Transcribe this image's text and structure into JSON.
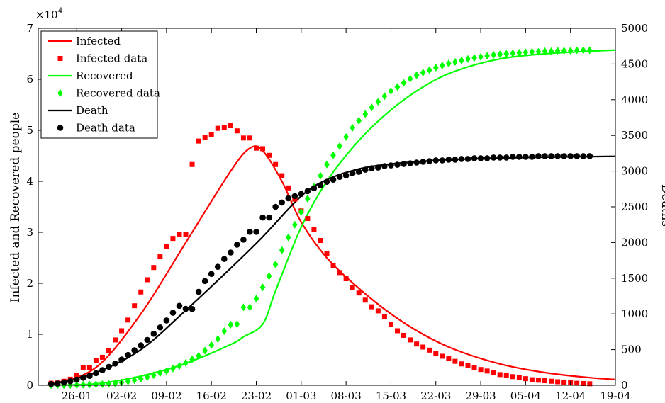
{
  "chart_data": {
    "type": "line",
    "title": "",
    "xlabel": "",
    "ylabel_left": "Infected and Recovered people",
    "ylabel_right": "Deaths",
    "left_multiplier_label": "×10",
    "left_multiplier_exponent": "4",
    "left_axis": {
      "range": [
        0,
        70000
      ],
      "ticks": [
        0,
        10000,
        20000,
        30000,
        40000,
        50000,
        60000,
        70000
      ],
      "tick_labels": [
        "0",
        "1",
        "2",
        "3",
        "4",
        "5",
        "6",
        "7"
      ]
    },
    "right_axis": {
      "range": [
        0,
        5000
      ],
      "ticks": [
        0,
        500,
        1000,
        1500,
        2000,
        2500,
        3000,
        3500,
        4000,
        4500,
        5000
      ],
      "tick_labels": [
        "0",
        "500",
        "1000",
        "1500",
        "2000",
        "2500",
        "3000",
        "3500",
        "4000",
        "4500",
        "5000"
      ]
    },
    "x_axis": {
      "type": "date",
      "range": [
        "2020-01-20",
        "2020-04-19"
      ],
      "ticks": [
        "2020-01-26",
        "2020-02-02",
        "2020-02-09",
        "2020-02-16",
        "2020-02-23",
        "2020-03-01",
        "2020-03-08",
        "2020-03-15",
        "2020-03-22",
        "2020-03-29",
        "2020-04-05",
        "2020-04-12",
        "2020-04-19"
      ],
      "tick_labels": [
        "26-01",
        "02-02",
        "09-02",
        "16-02",
        "23-02",
        "01-03",
        "08-03",
        "15-03",
        "22-03",
        "29-03",
        "05-04",
        "12-04",
        "19-04"
      ]
    },
    "grid": false,
    "legend": {
      "placement": "top-left",
      "entries": [
        "Infected",
        "Infected data",
        "Recovered",
        "Recovered data",
        "Death",
        "Death data"
      ]
    },
    "colors": {
      "infected": "#ff0000",
      "recovered": "#00ff00",
      "death": "#000000"
    },
    "series": [
      {
        "name": "Infected",
        "kind": "line",
        "axis": "left",
        "color": "#ff0000",
        "x": [
          "2020-01-22",
          "2020-01-29",
          "2020-02-05",
          "2020-02-12",
          "2020-02-19",
          "2020-02-22",
          "2020-02-24",
          "2020-02-27",
          "2020-03-01",
          "2020-03-05",
          "2020-03-10",
          "2020-03-15",
          "2020-03-20",
          "2020-03-25",
          "2020-04-01",
          "2020-04-08",
          "2020-04-15",
          "2020-04-22"
        ],
        "y": [
          200,
          3500,
          14000,
          28000,
          42000,
          46500,
          46000,
          40000,
          32000,
          25000,
          19000,
          14000,
          10000,
          7000,
          4200,
          2500,
          1500,
          900
        ]
      },
      {
        "name": "Infected data",
        "kind": "scatter",
        "axis": "left",
        "color": "#ff0000",
        "marker": "square",
        "x": [
          "2020-01-22",
          "2020-01-23",
          "2020-01-24",
          "2020-01-25",
          "2020-01-26",
          "2020-01-27",
          "2020-01-28",
          "2020-01-29",
          "2020-01-30",
          "2020-01-31",
          "2020-02-01",
          "2020-02-02",
          "2020-02-03",
          "2020-02-04",
          "2020-02-05",
          "2020-02-06",
          "2020-02-07",
          "2020-02-08",
          "2020-02-09",
          "2020-02-10",
          "2020-02-11",
          "2020-02-12",
          "2020-02-13",
          "2020-02-14",
          "2020-02-15",
          "2020-02-16",
          "2020-02-17",
          "2020-02-18",
          "2020-02-19",
          "2020-02-20",
          "2020-02-21",
          "2020-02-22",
          "2020-02-23",
          "2020-02-24",
          "2020-02-25",
          "2020-02-26",
          "2020-02-27",
          "2020-02-28",
          "2020-02-29",
          "2020-03-01",
          "2020-03-02",
          "2020-03-03",
          "2020-03-04",
          "2020-03-05",
          "2020-03-06",
          "2020-03-07",
          "2020-03-08",
          "2020-03-09",
          "2020-03-10",
          "2020-03-11",
          "2020-03-12",
          "2020-03-13",
          "2020-03-14",
          "2020-03-15",
          "2020-03-16",
          "2020-03-17",
          "2020-03-18",
          "2020-03-19",
          "2020-03-20",
          "2020-03-21",
          "2020-03-22",
          "2020-03-23",
          "2020-03-24",
          "2020-03-25",
          "2020-03-26",
          "2020-03-27",
          "2020-03-28",
          "2020-03-29",
          "2020-03-30",
          "2020-03-31",
          "2020-04-01",
          "2020-04-02",
          "2020-04-03",
          "2020-04-04",
          "2020-04-05",
          "2020-04-06",
          "2020-04-07",
          "2020-04-08",
          "2020-04-09",
          "2020-04-10",
          "2020-04-11",
          "2020-04-12",
          "2020-04-13",
          "2020-04-14",
          "2020-04-15"
        ],
        "y": [
          400,
          450,
          800,
          1200,
          2000,
          3500,
          3500,
          4800,
          5500,
          6800,
          8900,
          10700,
          12800,
          15600,
          18300,
          20700,
          23100,
          25200,
          27200,
          28800,
          29600,
          29600,
          43300,
          47900,
          48600,
          49100,
          50400,
          50600,
          50900,
          49900,
          48500,
          48500,
          46500,
          46400,
          45100,
          43300,
          41100,
          38700,
          36500,
          34200,
          32700,
          30500,
          28400,
          25900,
          23400,
          22100,
          20900,
          19200,
          18100,
          16700,
          15400,
          14600,
          13400,
          12000,
          10700,
          9800,
          8900,
          8100,
          7500,
          6900,
          6300,
          5700,
          5200,
          4700,
          4200,
          3900,
          3500,
          3100,
          2800,
          2500,
          2100,
          1900,
          1700,
          1500,
          1300,
          1100,
          1000,
          900,
          800,
          700,
          600,
          500,
          400,
          350,
          300
        ]
      },
      {
        "name": "Recovered",
        "kind": "line",
        "axis": "left",
        "color": "#00ff00",
        "x": [
          "2020-01-22",
          "2020-01-29",
          "2020-02-05",
          "2020-02-12",
          "2020-02-19",
          "2020-02-21",
          "2020-02-24",
          "2020-02-26",
          "2020-03-01",
          "2020-03-05",
          "2020-03-10",
          "2020-03-15",
          "2020-03-20",
          "2020-03-25",
          "2020-04-01",
          "2020-04-08",
          "2020-04-15",
          "2020-04-22"
        ],
        "y": [
          0,
          300,
          1800,
          4300,
          8000,
          9500,
          12000,
          18500,
          31000,
          40000,
          48000,
          54000,
          58500,
          61600,
          64000,
          65000,
          65500,
          65900
        ]
      },
      {
        "name": "Recovered data",
        "kind": "scatter",
        "axis": "left",
        "color": "#00ff00",
        "marker": "diamond",
        "x": [
          "2020-01-22",
          "2020-01-23",
          "2020-01-24",
          "2020-01-25",
          "2020-01-26",
          "2020-01-27",
          "2020-01-28",
          "2020-01-29",
          "2020-01-30",
          "2020-01-31",
          "2020-02-01",
          "2020-02-02",
          "2020-02-03",
          "2020-02-04",
          "2020-02-05",
          "2020-02-06",
          "2020-02-07",
          "2020-02-08",
          "2020-02-09",
          "2020-02-10",
          "2020-02-11",
          "2020-02-12",
          "2020-02-13",
          "2020-02-14",
          "2020-02-15",
          "2020-02-16",
          "2020-02-17",
          "2020-02-18",
          "2020-02-19",
          "2020-02-20",
          "2020-02-21",
          "2020-02-22",
          "2020-02-23",
          "2020-02-24",
          "2020-02-25",
          "2020-02-26",
          "2020-02-27",
          "2020-02-28",
          "2020-02-29",
          "2020-03-01",
          "2020-03-02",
          "2020-03-03",
          "2020-03-04",
          "2020-03-05",
          "2020-03-06",
          "2020-03-07",
          "2020-03-08",
          "2020-03-09",
          "2020-03-10",
          "2020-03-11",
          "2020-03-12",
          "2020-03-13",
          "2020-03-14",
          "2020-03-15",
          "2020-03-16",
          "2020-03-17",
          "2020-03-18",
          "2020-03-19",
          "2020-03-20",
          "2020-03-21",
          "2020-03-22",
          "2020-03-23",
          "2020-03-24",
          "2020-03-25",
          "2020-03-26",
          "2020-03-27",
          "2020-03-28",
          "2020-03-29",
          "2020-03-30",
          "2020-03-31",
          "2020-04-01",
          "2020-04-02",
          "2020-04-03",
          "2020-04-04",
          "2020-04-05",
          "2020-04-06",
          "2020-04-07",
          "2020-04-08",
          "2020-04-09",
          "2020-04-10",
          "2020-04-11",
          "2020-04-12",
          "2020-04-13",
          "2020-04-14",
          "2020-04-15"
        ],
        "y": [
          30,
          30,
          40,
          50,
          60,
          100,
          130,
          170,
          220,
          300,
          400,
          530,
          770,
          1000,
          1300,
          1600,
          2000,
          2400,
          2800,
          3300,
          3800,
          4400,
          5100,
          5800,
          6800,
          7900,
          9100,
          10600,
          11900,
          12000,
          15300,
          15300,
          17000,
          19200,
          21400,
          23700,
          26500,
          29000,
          31500,
          34000,
          36600,
          38900,
          41100,
          43300,
          45100,
          46900,
          48700,
          50500,
          51900,
          53200,
          54500,
          55600,
          56700,
          57700,
          58500,
          59300,
          60100,
          60800,
          61300,
          61800,
          62300,
          62700,
          63100,
          63400,
          63700,
          64000,
          64200,
          64400,
          64600,
          64800,
          64900,
          65000,
          65100,
          65200,
          65300,
          65400,
          65400,
          65500,
          65500,
          65600,
          65600,
          65600,
          65700,
          65700,
          65700
        ]
      },
      {
        "name": "Death",
        "kind": "line",
        "axis": "right",
        "color": "#000000",
        "x": [
          "2020-01-22",
          "2020-01-29",
          "2020-02-05",
          "2020-02-12",
          "2020-02-19",
          "2020-02-24",
          "2020-03-01",
          "2020-03-05",
          "2020-03-10",
          "2020-03-15",
          "2020-03-22",
          "2020-03-29",
          "2020-04-05",
          "2020-04-12",
          "2020-04-22"
        ],
        "y": [
          10,
          180,
          500,
          1050,
          1640,
          2080,
          2650,
          2880,
          3030,
          3100,
          3150,
          3175,
          3190,
          3200,
          3210
        ]
      },
      {
        "name": "Death data",
        "kind": "scatter",
        "axis": "right",
        "color": "#000000",
        "marker": "circle",
        "x": [
          "2020-01-22",
          "2020-01-23",
          "2020-01-24",
          "2020-01-25",
          "2020-01-26",
          "2020-01-27",
          "2020-01-28",
          "2020-01-29",
          "2020-01-30",
          "2020-01-31",
          "2020-02-01",
          "2020-02-02",
          "2020-02-03",
          "2020-02-04",
          "2020-02-05",
          "2020-02-06",
          "2020-02-07",
          "2020-02-08",
          "2020-02-09",
          "2020-02-10",
          "2020-02-11",
          "2020-02-12",
          "2020-02-13",
          "2020-02-14",
          "2020-02-15",
          "2020-02-16",
          "2020-02-17",
          "2020-02-18",
          "2020-02-19",
          "2020-02-20",
          "2020-02-21",
          "2020-02-22",
          "2020-02-23",
          "2020-02-24",
          "2020-02-25",
          "2020-02-26",
          "2020-02-27",
          "2020-02-28",
          "2020-02-29",
          "2020-03-01",
          "2020-03-02",
          "2020-03-03",
          "2020-03-04",
          "2020-03-05",
          "2020-03-06",
          "2020-03-07",
          "2020-03-08",
          "2020-03-09",
          "2020-03-10",
          "2020-03-11",
          "2020-03-12",
          "2020-03-13",
          "2020-03-14",
          "2020-03-15",
          "2020-03-16",
          "2020-03-17",
          "2020-03-18",
          "2020-03-19",
          "2020-03-20",
          "2020-03-21",
          "2020-03-22",
          "2020-03-23",
          "2020-03-24",
          "2020-03-25",
          "2020-03-26",
          "2020-03-27",
          "2020-03-28",
          "2020-03-29",
          "2020-03-30",
          "2020-03-31",
          "2020-04-01",
          "2020-04-02",
          "2020-04-03",
          "2020-04-04",
          "2020-04-05",
          "2020-04-06",
          "2020-04-07",
          "2020-04-08",
          "2020-04-09",
          "2020-04-10",
          "2020-04-11",
          "2020-04-12",
          "2020-04-13",
          "2020-04-14",
          "2020-04-15"
        ],
        "y": [
          17,
          25,
          41,
          56,
          80,
          106,
          132,
          170,
          213,
          259,
          304,
          361,
          425,
          490,
          560,
          636,
          722,
          811,
          908,
          1016,
          1113,
          1071,
          1068,
          1310,
          1460,
          1560,
          1660,
          1770,
          1860,
          1970,
          2040,
          2150,
          2150,
          2350,
          2350,
          2500,
          2560,
          2620,
          2650,
          2680,
          2720,
          2760,
          2800,
          2850,
          2880,
          2920,
          2940,
          2970,
          2990,
          3020,
          3040,
          3050,
          3070,
          3080,
          3090,
          3100,
          3110,
          3120,
          3130,
          3140,
          3150,
          3150,
          3160,
          3160,
          3170,
          3170,
          3180,
          3180,
          3180,
          3190,
          3190,
          3190,
          3200,
          3200,
          3200,
          3200,
          3210,
          3210,
          3210,
          3210,
          3210,
          3210,
          3210,
          3210,
          3210
        ]
      }
    ]
  }
}
